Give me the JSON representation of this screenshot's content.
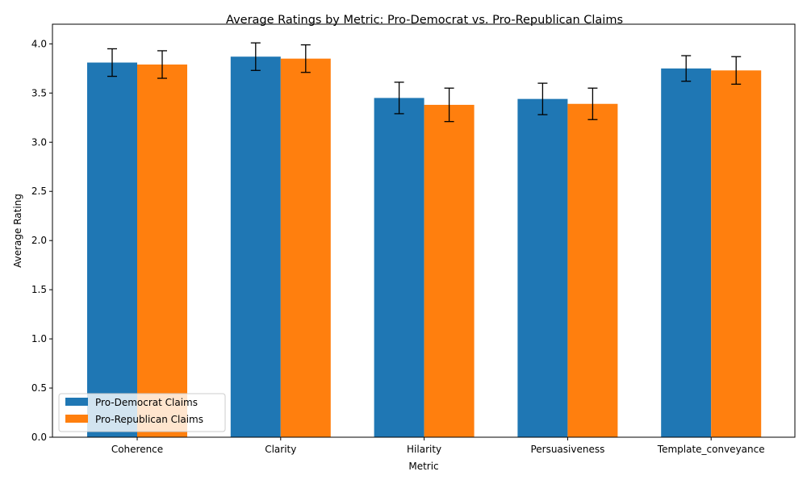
{
  "chart_data": {
    "type": "bar",
    "title": "Average Ratings by Metric: Pro-Democrat vs. Pro-Republican Claims",
    "xlabel": "Metric",
    "ylabel": "Average Rating",
    "categories": [
      "Coherence",
      "Clarity",
      "Hilarity",
      "Persuasiveness",
      "Template_conveyance"
    ],
    "ylim": [
      0,
      4.2
    ],
    "yticks": [
      "0.0",
      "0.5",
      "1.0",
      "1.5",
      "2.0",
      "2.5",
      "3.0",
      "3.5",
      "4.0"
    ],
    "series": [
      {
        "name": "Pro-Democrat Claims",
        "color": "#1f77b4",
        "values": [
          3.81,
          3.87,
          3.45,
          3.44,
          3.75
        ],
        "error": [
          0.14,
          0.14,
          0.16,
          0.16,
          0.13
        ]
      },
      {
        "name": "Pro-Republican Claims",
        "color": "#ff7f0e",
        "values": [
          3.79,
          3.85,
          3.38,
          3.39,
          3.73
        ],
        "error": [
          0.14,
          0.14,
          0.17,
          0.16,
          0.14
        ]
      }
    ],
    "grid": false,
    "legend_position": "lower-left",
    "error_bars": true
  }
}
